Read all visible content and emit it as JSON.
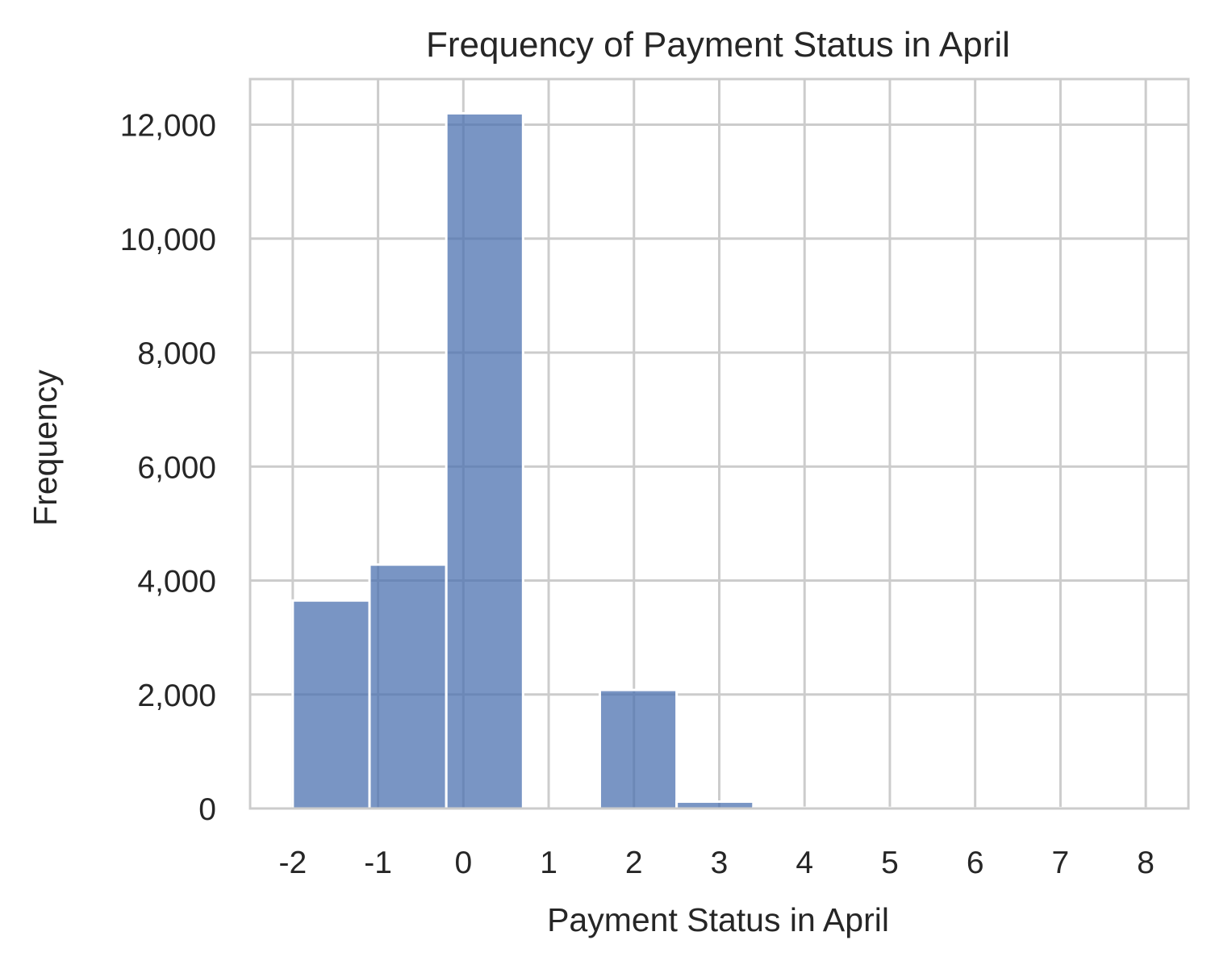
{
  "chart_data": {
    "type": "bar",
    "title": "Frequency of Payment Status in April",
    "xlabel": "Payment Status in April",
    "ylabel": "Frequency",
    "x_ticks": [
      -2,
      -1,
      0,
      1,
      2,
      3,
      4,
      5,
      6,
      7,
      8
    ],
    "x_tick_labels": [
      "-2",
      "-1",
      "0",
      "1",
      "2",
      "3",
      "4",
      "5",
      "6",
      "7",
      "8"
    ],
    "y_ticks": [
      0,
      2000,
      4000,
      6000,
      8000,
      10000,
      12000
    ],
    "y_tick_labels": [
      "0",
      "2,000",
      "4,000",
      "6,000",
      "8,000",
      "10,000",
      "12,000"
    ],
    "xlim": [
      -2.5,
      8.5
    ],
    "ylim": [
      0,
      12800
    ],
    "bin_edges": [
      -2.0,
      -1.1,
      -0.2,
      0.7,
      1.6,
      2.5,
      3.4,
      4.3,
      5.2,
      6.1,
      7.0,
      8.0
    ],
    "values": [
      3650,
      4280,
      12200,
      0,
      2080,
      120,
      12,
      10,
      3,
      8,
      2
    ],
    "grid": true,
    "bar_color": "#4c72b0",
    "bar_opacity": 0.75
  }
}
